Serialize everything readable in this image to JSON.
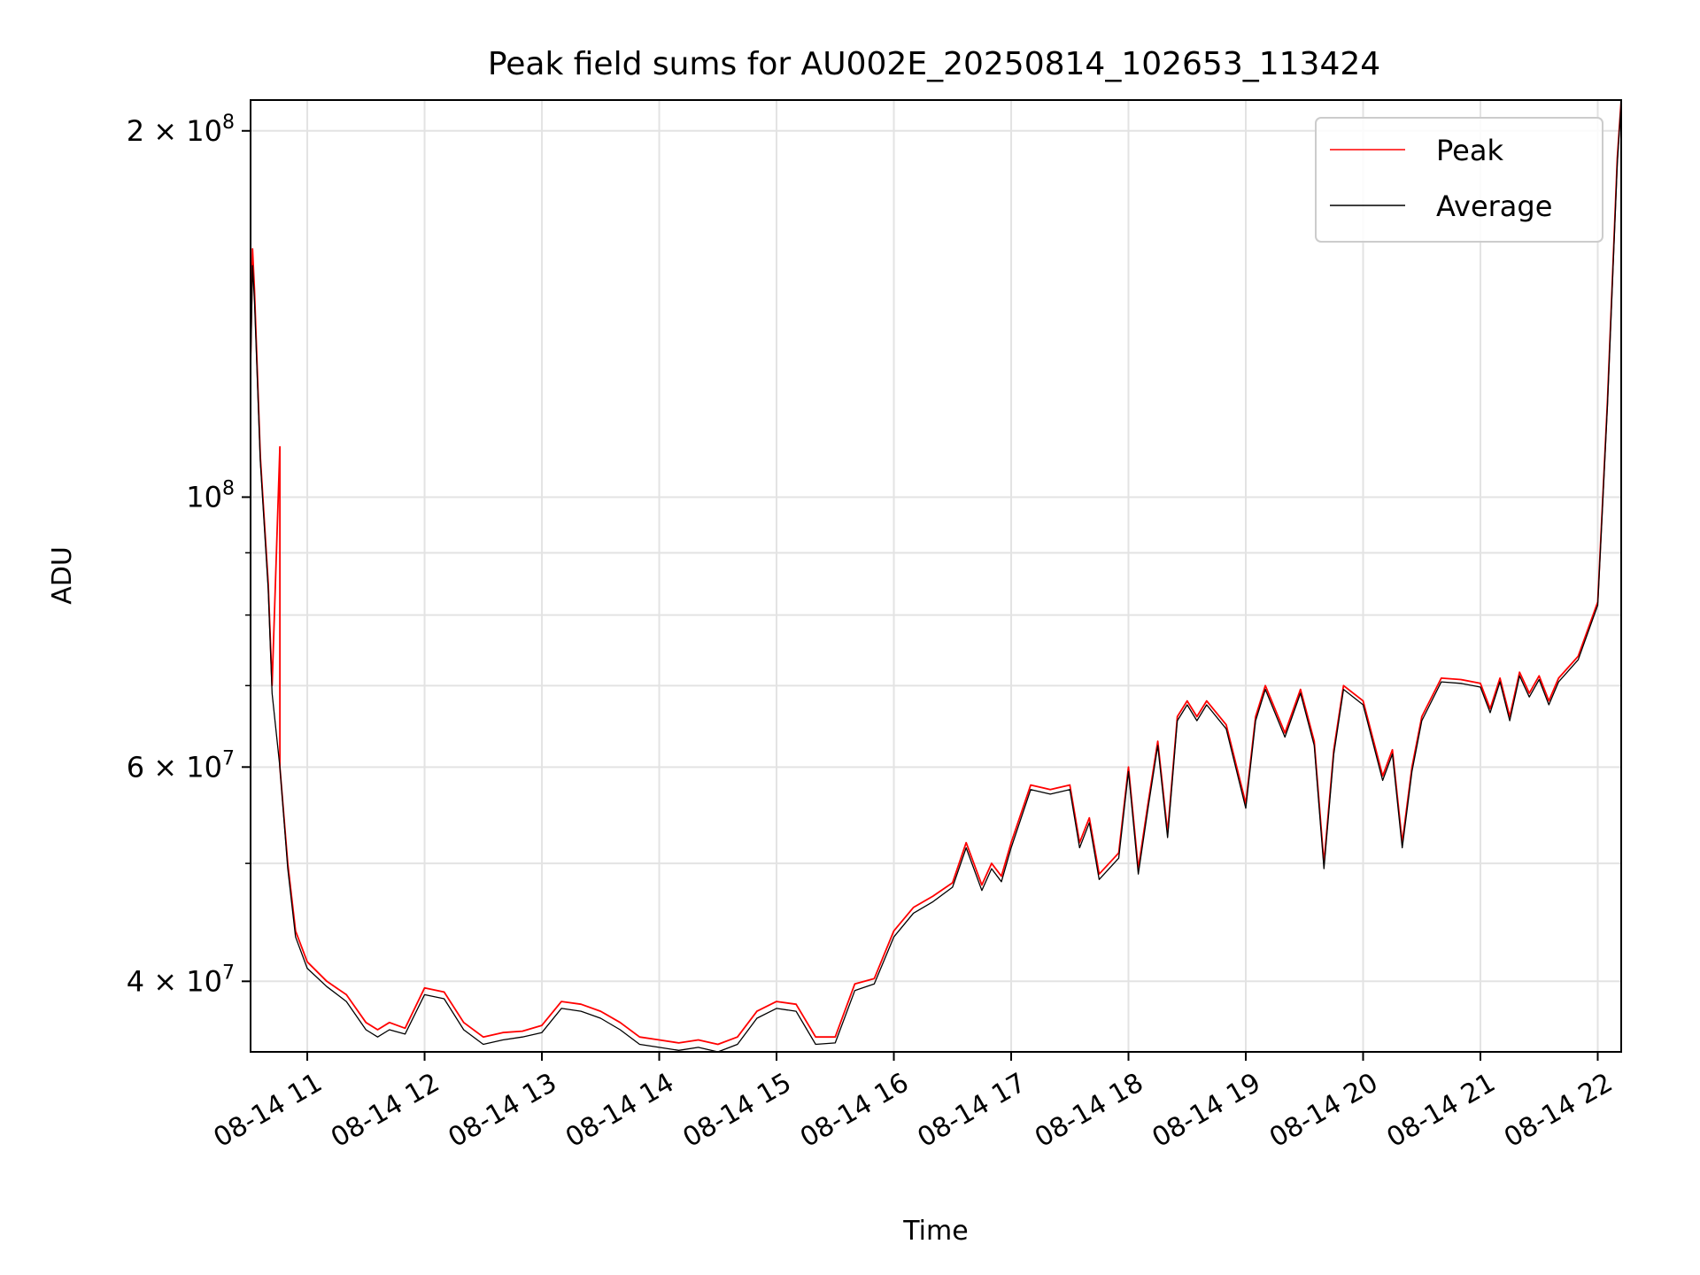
{
  "chart_data": {
    "type": "line",
    "title": "Peak field sums for AU002E_20250814_102653_113424",
    "xlabel": "Time",
    "ylabel": "ADU",
    "y_scale": "log",
    "xlim": [
      "2025-08-14 10:31",
      "2025-08-14 22:12"
    ],
    "ylim": [
      35000000,
      212000000
    ],
    "x_tick_labels": [
      "08-14 11",
      "08-14 12",
      "08-14 13",
      "08-14 14",
      "08-14 15",
      "08-14 16",
      "08-14 17",
      "08-14 18",
      "08-14 19",
      "08-14 20",
      "08-14 21",
      "08-14 22"
    ],
    "x_ticks": [
      "2025-08-14 11:00",
      "2025-08-14 12:00",
      "2025-08-14 13:00",
      "2025-08-14 14:00",
      "2025-08-14 15:00",
      "2025-08-14 16:00",
      "2025-08-14 17:00",
      "2025-08-14 18:00",
      "2025-08-14 19:00",
      "2025-08-14 20:00",
      "2025-08-14 21:00",
      "2025-08-14 22:00"
    ],
    "y_major_ticks": [
      {
        "value": 40000000,
        "label_base": "4 × 10",
        "label_exp": "7"
      },
      {
        "value": 60000000,
        "label_base": "6 × 10",
        "label_exp": "7"
      },
      {
        "value": 100000000,
        "label_base": "10",
        "label_exp": "8"
      },
      {
        "value": 200000000,
        "label_base": "2 × 10",
        "label_exp": "8"
      }
    ],
    "y_minor_ticks": [
      50000000,
      70000000,
      80000000,
      90000000
    ],
    "grid": true,
    "legend_position": "top-right",
    "series": [
      {
        "name": "Peak",
        "color": "#ff0000",
        "x": [
          "2025-08-14 10:31",
          "2025-08-14 10:32",
          "2025-08-14 10:33",
          "2025-08-14 10:36",
          "2025-08-14 10:40",
          "2025-08-14 10:42",
          "2025-08-14 10:46",
          "2025-08-14 10:46",
          "2025-08-14 10:46",
          "2025-08-14 10:50",
          "2025-08-14 10:54",
          "2025-08-14 11:00",
          "2025-08-14 11:10",
          "2025-08-14 11:20",
          "2025-08-14 11:30",
          "2025-08-14 11:36",
          "2025-08-14 11:42",
          "2025-08-14 11:50",
          "2025-08-14 12:00",
          "2025-08-14 12:10",
          "2025-08-14 12:20",
          "2025-08-14 12:30",
          "2025-08-14 12:40",
          "2025-08-14 12:50",
          "2025-08-14 13:00",
          "2025-08-14 13:10",
          "2025-08-14 13:20",
          "2025-08-14 13:30",
          "2025-08-14 13:40",
          "2025-08-14 13:50",
          "2025-08-14 14:00",
          "2025-08-14 14:10",
          "2025-08-14 14:20",
          "2025-08-14 14:30",
          "2025-08-14 14:40",
          "2025-08-14 14:50",
          "2025-08-14 15:00",
          "2025-08-14 15:10",
          "2025-08-14 15:20",
          "2025-08-14 15:30",
          "2025-08-14 15:40",
          "2025-08-14 15:50",
          "2025-08-14 16:00",
          "2025-08-14 16:10",
          "2025-08-14 16:20",
          "2025-08-14 16:30",
          "2025-08-14 16:37",
          "2025-08-14 16:45",
          "2025-08-14 16:50",
          "2025-08-14 16:55",
          "2025-08-14 17:00",
          "2025-08-14 17:10",
          "2025-08-14 17:20",
          "2025-08-14 17:30",
          "2025-08-14 17:35",
          "2025-08-14 17:40",
          "2025-08-14 17:45",
          "2025-08-14 17:55",
          "2025-08-14 18:00",
          "2025-08-14 18:05",
          "2025-08-14 18:10",
          "2025-08-14 18:15",
          "2025-08-14 18:20",
          "2025-08-14 18:25",
          "2025-08-14 18:30",
          "2025-08-14 18:35",
          "2025-08-14 18:40",
          "2025-08-14 18:50",
          "2025-08-14 19:00",
          "2025-08-14 19:05",
          "2025-08-14 19:10",
          "2025-08-14 19:20",
          "2025-08-14 19:28",
          "2025-08-14 19:35",
          "2025-08-14 19:40",
          "2025-08-14 19:45",
          "2025-08-14 19:50",
          "2025-08-14 20:00",
          "2025-08-14 20:10",
          "2025-08-14 20:15",
          "2025-08-14 20:20",
          "2025-08-14 20:25",
          "2025-08-14 20:30",
          "2025-08-14 20:40",
          "2025-08-14 20:50",
          "2025-08-14 21:00",
          "2025-08-14 21:05",
          "2025-08-14 21:10",
          "2025-08-14 21:15",
          "2025-08-14 21:20",
          "2025-08-14 21:25",
          "2025-08-14 21:30",
          "2025-08-14 21:35",
          "2025-08-14 21:40",
          "2025-08-14 21:50",
          "2025-08-14 22:00",
          "2025-08-14 22:05",
          "2025-08-14 22:10",
          "2025-08-14 22:12"
        ],
        "y": [
          128000000,
          160000000,
          148000000,
          108000000,
          85000000,
          70000000,
          110000000,
          70000000,
          60000000,
          50000000,
          44000000,
          41500000,
          40000000,
          39000000,
          37000000,
          36500000,
          37000000,
          36600000,
          39500000,
          39200000,
          37000000,
          36000000,
          36300000,
          36400000,
          36800000,
          38500000,
          38300000,
          37800000,
          37000000,
          36000000,
          35800000,
          35600000,
          35800000,
          35500000,
          36000000,
          37800000,
          38500000,
          38300000,
          36000000,
          36000000,
          39800000,
          40200000,
          44000000,
          46000000,
          47000000,
          48200000,
          52000000,
          48000000,
          50000000,
          48800000,
          52000000,
          58000000,
          57500000,
          58000000,
          52000000,
          54500000,
          49000000,
          51000000,
          60000000,
          49500000,
          56000000,
          63000000,
          53000000,
          66000000,
          68000000,
          66000000,
          68000000,
          65000000,
          56000000,
          66000000,
          70000000,
          64000000,
          69500000,
          63000000,
          50000000,
          62000000,
          70000000,
          68000000,
          59000000,
          62000000,
          52000000,
          60000000,
          66000000,
          71000000,
          70800000,
          70300000,
          67000000,
          71000000,
          66000000,
          71800000,
          69000000,
          71300000,
          68000000,
          71000000,
          74000000,
          82000000,
          120000000,
          190000000,
          212000000
        ]
      },
      {
        "name": "Average",
        "color": "#000000",
        "x": [
          "2025-08-14 10:31",
          "2025-08-14 10:32",
          "2025-08-14 10:33",
          "2025-08-14 10:36",
          "2025-08-14 10:40",
          "2025-08-14 10:42",
          "2025-08-14 10:46",
          "2025-08-14 10:50",
          "2025-08-14 10:54",
          "2025-08-14 11:00",
          "2025-08-14 11:10",
          "2025-08-14 11:20",
          "2025-08-14 11:30",
          "2025-08-14 11:36",
          "2025-08-14 11:42",
          "2025-08-14 11:50",
          "2025-08-14 12:00",
          "2025-08-14 12:10",
          "2025-08-14 12:20",
          "2025-08-14 12:30",
          "2025-08-14 12:40",
          "2025-08-14 12:50",
          "2025-08-14 13:00",
          "2025-08-14 13:10",
          "2025-08-14 13:20",
          "2025-08-14 13:30",
          "2025-08-14 13:40",
          "2025-08-14 13:50",
          "2025-08-14 14:00",
          "2025-08-14 14:10",
          "2025-08-14 14:20",
          "2025-08-14 14:30",
          "2025-08-14 14:40",
          "2025-08-14 14:50",
          "2025-08-14 15:00",
          "2025-08-14 15:10",
          "2025-08-14 15:20",
          "2025-08-14 15:30",
          "2025-08-14 15:40",
          "2025-08-14 15:50",
          "2025-08-14 16:00",
          "2025-08-14 16:10",
          "2025-08-14 16:20",
          "2025-08-14 16:30",
          "2025-08-14 16:37",
          "2025-08-14 16:45",
          "2025-08-14 16:50",
          "2025-08-14 16:55",
          "2025-08-14 17:00",
          "2025-08-14 17:10",
          "2025-08-14 17:20",
          "2025-08-14 17:30",
          "2025-08-14 17:35",
          "2025-08-14 17:40",
          "2025-08-14 17:45",
          "2025-08-14 17:55",
          "2025-08-14 18:00",
          "2025-08-14 18:05",
          "2025-08-14 18:10",
          "2025-08-14 18:15",
          "2025-08-14 18:20",
          "2025-08-14 18:25",
          "2025-08-14 18:30",
          "2025-08-14 18:35",
          "2025-08-14 18:40",
          "2025-08-14 18:50",
          "2025-08-14 19:00",
          "2025-08-14 19:05",
          "2025-08-14 19:10",
          "2025-08-14 19:20",
          "2025-08-14 19:28",
          "2025-08-14 19:35",
          "2025-08-14 19:40",
          "2025-08-14 19:45",
          "2025-08-14 19:50",
          "2025-08-14 20:00",
          "2025-08-14 20:10",
          "2025-08-14 20:15",
          "2025-08-14 20:20",
          "2025-08-14 20:25",
          "2025-08-14 20:30",
          "2025-08-14 20:40",
          "2025-08-14 20:50",
          "2025-08-14 21:00",
          "2025-08-14 21:05",
          "2025-08-14 21:10",
          "2025-08-14 21:15",
          "2025-08-14 21:20",
          "2025-08-14 21:25",
          "2025-08-14 21:30",
          "2025-08-14 21:35",
          "2025-08-14 21:40",
          "2025-08-14 21:50",
          "2025-08-14 22:00",
          "2025-08-14 22:05",
          "2025-08-14 22:10",
          "2025-08-14 22:12"
        ],
        "y": [
          127000000,
          155000000,
          145000000,
          107000000,
          84000000,
          69000000,
          60000000,
          49500000,
          43500000,
          41000000,
          39600000,
          38500000,
          36500000,
          36000000,
          36500000,
          36200000,
          39000000,
          38700000,
          36500000,
          35500000,
          35800000,
          36000000,
          36300000,
          38000000,
          37800000,
          37300000,
          36500000,
          35500000,
          35300000,
          35100000,
          35300000,
          35000000,
          35500000,
          37300000,
          38000000,
          37800000,
          35500000,
          35600000,
          39300000,
          39800000,
          43500000,
          45500000,
          46500000,
          47800000,
          51500000,
          47500000,
          49500000,
          48300000,
          51500000,
          57500000,
          57000000,
          57500000,
          51500000,
          54000000,
          48500000,
          50500000,
          59500000,
          49000000,
          55500000,
          62500000,
          52500000,
          65500000,
          67500000,
          65500000,
          67500000,
          64500000,
          55500000,
          65500000,
          69500000,
          63500000,
          69000000,
          62500000,
          49500000,
          61500000,
          69500000,
          67500000,
          58500000,
          61500000,
          51500000,
          59500000,
          65500000,
          70500000,
          70300000,
          69800000,
          66500000,
          70500000,
          65500000,
          71300000,
          68500000,
          70800000,
          67500000,
          70500000,
          73500000,
          81500000,
          119000000,
          188000000,
          211000000
        ]
      }
    ]
  }
}
